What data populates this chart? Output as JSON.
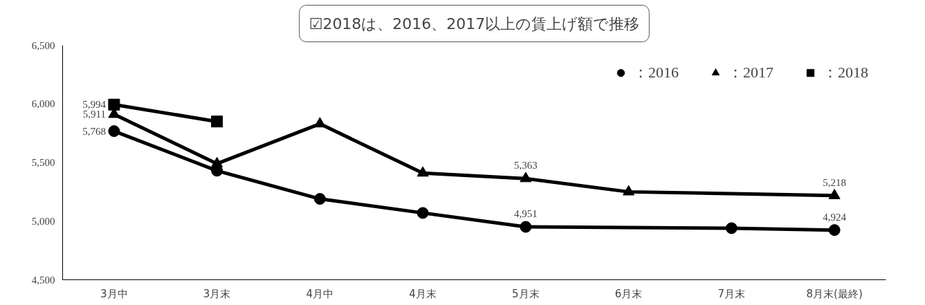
{
  "chart_data": {
    "type": "line",
    "title": "☑2018は、2016、2017以上の賃上げ額で推移",
    "categories": [
      "3月中",
      "3月末",
      "4月中",
      "4月末",
      "5月末",
      "6月末",
      "7月末",
      "8月末(最終)"
    ],
    "ylim": [
      4500,
      6500
    ],
    "yticks": [
      {
        "value": 4500,
        "label": "4,500"
      },
      {
        "value": 5000,
        "label": "5,000"
      },
      {
        "value": 5500,
        "label": "5,500"
      },
      {
        "value": 6000,
        "label": "6,000"
      },
      {
        "value": 6500,
        "label": "6,500"
      }
    ],
    "grid": false,
    "legend": "top right",
    "series": [
      {
        "name": "：2016",
        "color": "#000000",
        "marker": "circle",
        "values": [
          5768,
          5430,
          5190,
          5070,
          4951,
          null,
          4940,
          4924
        ],
        "value_labels": [
          "5,768",
          null,
          null,
          null,
          "4,951",
          null,
          null,
          "4,924"
        ]
      },
      {
        "name": "：2017",
        "color": "#000000",
        "marker": "triangle",
        "values": [
          5911,
          5490,
          5830,
          5410,
          5363,
          5250,
          null,
          5218
        ],
        "value_labels": [
          "5,911",
          null,
          null,
          null,
          "5,363",
          null,
          null,
          "5,218"
        ]
      },
      {
        "name": "：2018",
        "color": "#000000",
        "marker": "square",
        "values": [
          5994,
          5850,
          null,
          null,
          null,
          null,
          null,
          null
        ],
        "value_labels": [
          "5,994",
          null,
          null,
          null,
          null,
          null,
          null,
          null
        ]
      }
    ]
  }
}
